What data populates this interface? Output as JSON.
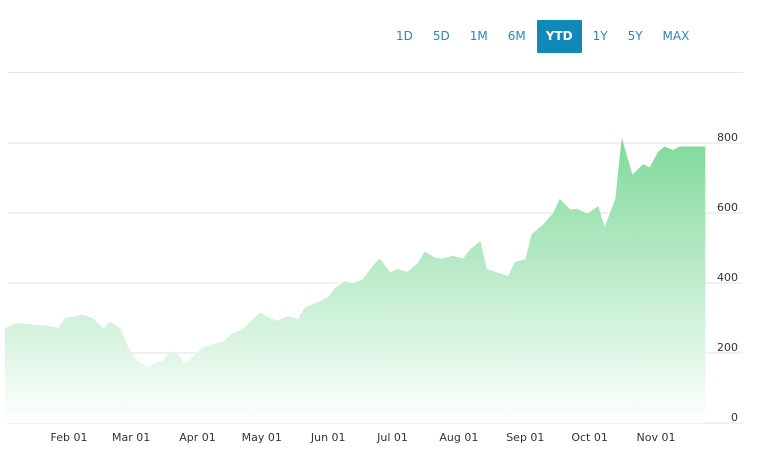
{
  "range_selector": {
    "buttons": [
      {
        "label": "1D",
        "active": false
      },
      {
        "label": "5D",
        "active": false
      },
      {
        "label": "1M",
        "active": false
      },
      {
        "label": "6M",
        "active": false
      },
      {
        "label": "YTD",
        "active": true
      },
      {
        "label": "1Y",
        "active": false
      },
      {
        "label": "5Y",
        "active": false
      },
      {
        "label": "MAX",
        "active": false
      }
    ]
  },
  "chart_data": {
    "type": "area",
    "title": "",
    "xlabel": "",
    "ylabel": "",
    "ylim": [
      0,
      800
    ],
    "y_ticks": [
      0,
      200,
      400,
      600,
      800
    ],
    "x_tick_labels": [
      "Feb 01",
      "Mar 01",
      "Apr 01",
      "May 01",
      "Jun 01",
      "Jul 01",
      "Aug 01",
      "Sep 01",
      "Oct 01",
      "Nov 01"
    ],
    "y_axis_position": "right",
    "grid": true,
    "colors": {
      "fill_top": "#7fd99a",
      "fill_bottom": "#ffffff",
      "grid": "#e0e0e0"
    },
    "x": [
      "2020-01-02",
      "2020-01-06",
      "2020-01-09",
      "2020-01-14",
      "2020-01-17",
      "2020-01-22",
      "2020-01-27",
      "2020-01-30",
      "2020-02-04",
      "2020-02-07",
      "2020-02-12",
      "2020-02-17",
      "2020-02-20",
      "2020-02-25",
      "2020-02-28",
      "2020-03-04",
      "2020-03-09",
      "2020-03-12",
      "2020-03-16",
      "2020-03-19",
      "2020-03-23",
      "2020-03-26",
      "2020-03-31",
      "2020-04-03",
      "2020-04-08",
      "2020-04-13",
      "2020-04-17",
      "2020-04-22",
      "2020-04-27",
      "2020-04-30",
      "2020-05-05",
      "2020-05-08",
      "2020-05-13",
      "2020-05-18",
      "2020-05-21",
      "2020-05-27",
      "2020-06-01",
      "2020-06-04",
      "2020-06-09",
      "2020-06-12",
      "2020-06-17",
      "2020-06-22",
      "2020-06-25",
      "2020-06-30",
      "2020-07-03",
      "2020-07-08",
      "2020-07-13",
      "2020-07-16",
      "2020-07-21",
      "2020-07-24",
      "2020-07-29",
      "2020-08-03",
      "2020-08-06",
      "2020-08-11",
      "2020-08-14",
      "2020-08-19",
      "2020-08-24",
      "2020-08-27",
      "2020-09-01",
      "2020-09-04",
      "2020-09-09",
      "2020-09-14",
      "2020-09-17",
      "2020-09-22",
      "2020-09-25",
      "2020-09-30",
      "2020-10-05",
      "2020-10-08",
      "2020-10-13",
      "2020-10-16",
      "2020-10-21",
      "2020-10-26",
      "2020-10-29",
      "2020-11-02",
      "2020-11-05",
      "2020-11-09",
      "2020-11-12",
      "2020-11-17",
      "2020-11-20",
      "2020-11-24"
    ],
    "values": [
      270,
      282,
      285,
      282,
      280,
      278,
      272,
      300,
      305,
      310,
      300,
      270,
      290,
      270,
      225,
      175,
      160,
      170,
      180,
      205,
      195,
      170,
      195,
      215,
      225,
      232,
      255,
      268,
      298,
      315,
      300,
      292,
      305,
      298,
      330,
      345,
      360,
      385,
      405,
      398,
      410,
      450,
      470,
      430,
      440,
      432,
      458,
      490,
      472,
      470,
      478,
      470,
      495,
      520,
      440,
      430,
      420,
      460,
      468,
      540,
      565,
      600,
      640,
      610,
      612,
      598,
      620,
      560,
      640,
      815,
      710,
      740,
      730,
      775,
      790,
      780,
      790,
      790,
      790,
      790
    ]
  }
}
